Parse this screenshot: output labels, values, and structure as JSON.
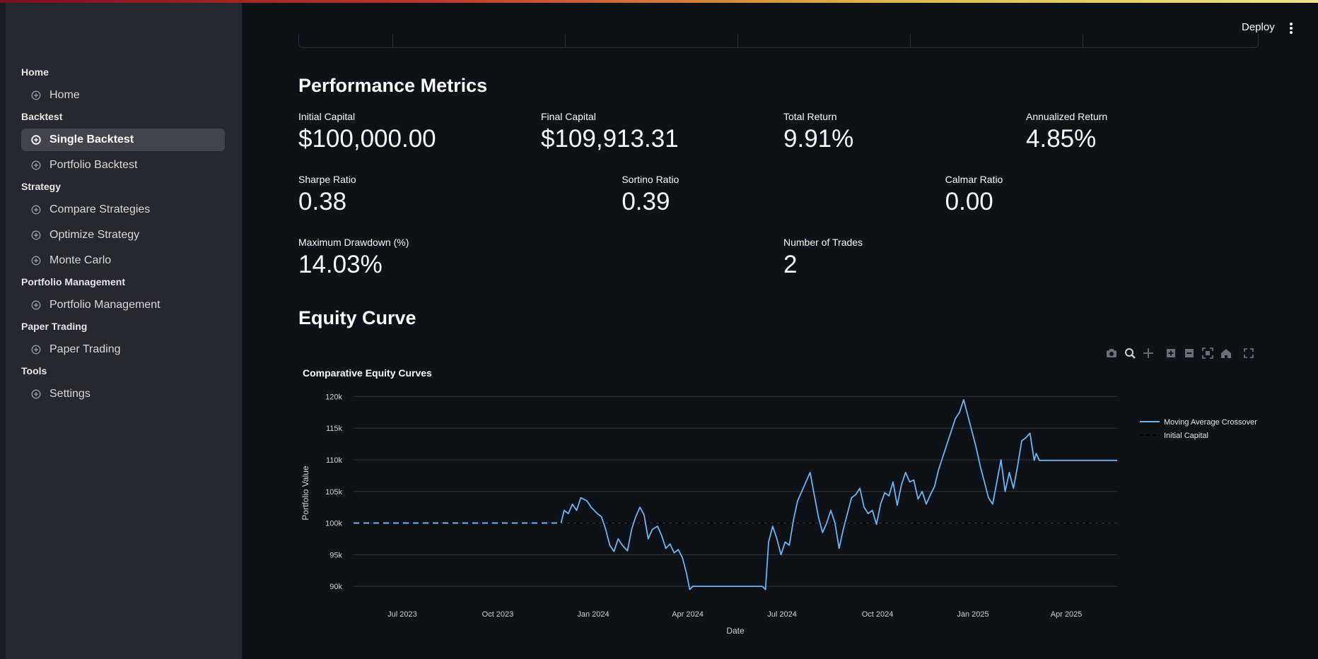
{
  "sidebar": {
    "sections": [
      {
        "title": "Home",
        "items": [
          {
            "label": "Home",
            "active": false
          }
        ]
      },
      {
        "title": "Backtest",
        "items": [
          {
            "label": "Single Backtest",
            "active": true
          },
          {
            "label": "Portfolio Backtest",
            "active": false
          }
        ]
      },
      {
        "title": "Strategy",
        "items": [
          {
            "label": "Compare Strategies",
            "active": false
          },
          {
            "label": "Optimize Strategy",
            "active": false
          },
          {
            "label": "Monte Carlo",
            "active": false
          }
        ]
      },
      {
        "title": "Portfolio Management",
        "items": [
          {
            "label": "Portfolio Management",
            "active": false
          }
        ]
      },
      {
        "title": "Paper Trading",
        "items": [
          {
            "label": "Paper Trading",
            "active": false
          }
        ]
      },
      {
        "title": "Tools",
        "items": [
          {
            "label": "Settings",
            "active": false
          }
        ]
      }
    ]
  },
  "header": {
    "deploy_label": "Deploy"
  },
  "performance": {
    "title": "Performance Metrics",
    "rows": [
      [
        {
          "label": "Initial Capital",
          "value": "$100,000.00"
        },
        {
          "label": "Final Capital",
          "value": "$109,913.31"
        },
        {
          "label": "Total Return",
          "value": "9.91%"
        },
        {
          "label": "Annualized Return",
          "value": "4.85%"
        }
      ],
      [
        {
          "label": "Sharpe Ratio",
          "value": "0.38"
        },
        {
          "label": "Sortino Ratio",
          "value": "0.39"
        },
        {
          "label": "Calmar Ratio",
          "value": "0.00"
        }
      ],
      [
        {
          "label": "Maximum Drawdown (%)",
          "value": "14.03%"
        },
        {
          "label": "Number of Trades",
          "value": "2"
        }
      ]
    ]
  },
  "equity": {
    "title": "Equity Curve"
  },
  "modebar_icons": [
    "camera-icon",
    "zoom-icon",
    "pan-icon",
    "zoom-in-icon",
    "zoom-out-icon",
    "autoscale-icon",
    "reset-axes-icon",
    "fullscreen-icon"
  ],
  "chart_data": {
    "type": "line",
    "title": "Comparative Equity Curves",
    "xlabel": "Date",
    "ylabel": "Portfolio Value",
    "x_ticks": [
      "Jul 2023",
      "Oct 2023",
      "Jan 2024",
      "Apr 2024",
      "Jul 2024",
      "Oct 2024",
      "Jan 2025",
      "Apr 2025"
    ],
    "y_ticks": [
      "90k",
      "95k",
      "100k",
      "105k",
      "110k",
      "115k",
      "120k"
    ],
    "xlim": [
      "2023-05-15",
      "2025-05-20"
    ],
    "ylim": [
      88000,
      121500
    ],
    "grid": true,
    "legend_position": "top-right",
    "colors": {
      "strategy": "#6eb4f0",
      "baseline": "#000000",
      "grid": "#30343c"
    },
    "series": [
      {
        "name": "Moving Average Crossover",
        "style": "solid",
        "flat_from": "2023-05-15",
        "points": [
          [
            "2023-12-01",
            100000
          ],
          [
            "2023-12-04",
            102000
          ],
          [
            "2023-12-08",
            101500
          ],
          [
            "2023-12-12",
            103000
          ],
          [
            "2023-12-16",
            102000
          ],
          [
            "2023-12-20",
            104000
          ],
          [
            "2023-12-26",
            103500
          ],
          [
            "2023-12-30",
            102500
          ],
          [
            "2024-01-05",
            101500
          ],
          [
            "2024-01-09",
            101000
          ],
          [
            "2024-01-13",
            99000
          ],
          [
            "2024-01-17",
            96500
          ],
          [
            "2024-01-21",
            95500
          ],
          [
            "2024-01-25",
            97500
          ],
          [
            "2024-01-29",
            96500
          ],
          [
            "2024-02-03",
            95600
          ],
          [
            "2024-02-07",
            99000
          ],
          [
            "2024-02-11",
            101000
          ],
          [
            "2024-02-15",
            102500
          ],
          [
            "2024-02-19",
            101300
          ],
          [
            "2024-02-23",
            97500
          ],
          [
            "2024-02-27",
            99000
          ],
          [
            "2024-03-03",
            99500
          ],
          [
            "2024-03-07",
            98000
          ],
          [
            "2024-03-11",
            96000
          ],
          [
            "2024-03-15",
            96700
          ],
          [
            "2024-03-19",
            95300
          ],
          [
            "2024-03-23",
            95800
          ],
          [
            "2024-03-27",
            94500
          ],
          [
            "2024-03-31",
            92000
          ],
          [
            "2024-04-03",
            89500
          ],
          [
            "2024-04-06",
            90000
          ],
          [
            "2024-06-12",
            90000
          ],
          [
            "2024-06-15",
            89500
          ],
          [
            "2024-06-18",
            97000
          ],
          [
            "2024-06-22",
            99500
          ],
          [
            "2024-06-26",
            97500
          ],
          [
            "2024-06-30",
            95000
          ],
          [
            "2024-07-04",
            97000
          ],
          [
            "2024-07-08",
            96500
          ],
          [
            "2024-07-12",
            100500
          ],
          [
            "2024-07-16",
            103500
          ],
          [
            "2024-07-20",
            105000
          ],
          [
            "2024-07-24",
            106500
          ],
          [
            "2024-07-28",
            108000
          ],
          [
            "2024-08-01",
            104500
          ],
          [
            "2024-08-05",
            101000
          ],
          [
            "2024-08-09",
            98500
          ],
          [
            "2024-08-13",
            100000
          ],
          [
            "2024-08-17",
            102000
          ],
          [
            "2024-08-21",
            100000
          ],
          [
            "2024-08-25",
            96000
          ],
          [
            "2024-08-29",
            99000
          ],
          [
            "2024-09-02",
            101500
          ],
          [
            "2024-09-06",
            104000
          ],
          [
            "2024-09-10",
            104500
          ],
          [
            "2024-09-14",
            105500
          ],
          [
            "2024-09-18",
            102500
          ],
          [
            "2024-09-22",
            101500
          ],
          [
            "2024-09-26",
            102000
          ],
          [
            "2024-09-30",
            99800
          ],
          [
            "2024-10-04",
            103000
          ],
          [
            "2024-10-08",
            104800
          ],
          [
            "2024-10-12",
            104300
          ],
          [
            "2024-10-16",
            106500
          ],
          [
            "2024-10-20",
            102800
          ],
          [
            "2024-10-24",
            106000
          ],
          [
            "2024-10-28",
            108000
          ],
          [
            "2024-11-01",
            106500
          ],
          [
            "2024-11-05",
            106800
          ],
          [
            "2024-11-09",
            103800
          ],
          [
            "2024-11-13",
            105000
          ],
          [
            "2024-11-17",
            103000
          ],
          [
            "2024-11-21",
            104500
          ],
          [
            "2024-11-25",
            105800
          ],
          [
            "2024-11-29",
            108500
          ],
          [
            "2024-12-03",
            110500
          ],
          [
            "2024-12-07",
            112500
          ],
          [
            "2024-12-11",
            114500
          ],
          [
            "2024-12-15",
            116500
          ],
          [
            "2024-12-19",
            117500
          ],
          [
            "2024-12-23",
            119500
          ],
          [
            "2024-12-27",
            117000
          ],
          [
            "2024-12-31",
            114500
          ],
          [
            "2025-01-04",
            112000
          ],
          [
            "2025-01-08",
            109000
          ],
          [
            "2025-01-12",
            106500
          ],
          [
            "2025-01-16",
            104000
          ],
          [
            "2025-01-20",
            103000
          ],
          [
            "2025-01-24",
            106500
          ],
          [
            "2025-01-28",
            110000
          ],
          [
            "2025-02-01",
            105000
          ],
          [
            "2025-02-05",
            108000
          ],
          [
            "2025-02-09",
            105500
          ],
          [
            "2025-02-13",
            109000
          ],
          [
            "2025-02-17",
            113000
          ],
          [
            "2025-02-21",
            113500
          ],
          [
            "2025-02-25",
            114200
          ],
          [
            "2025-03-01",
            109900
          ],
          [
            "2025-03-03",
            111000
          ],
          [
            "2025-03-06",
            109900
          ],
          [
            "2025-05-20",
            109900
          ]
        ]
      },
      {
        "name": "Initial Capital",
        "style": "dash",
        "value": 100000
      }
    ]
  }
}
